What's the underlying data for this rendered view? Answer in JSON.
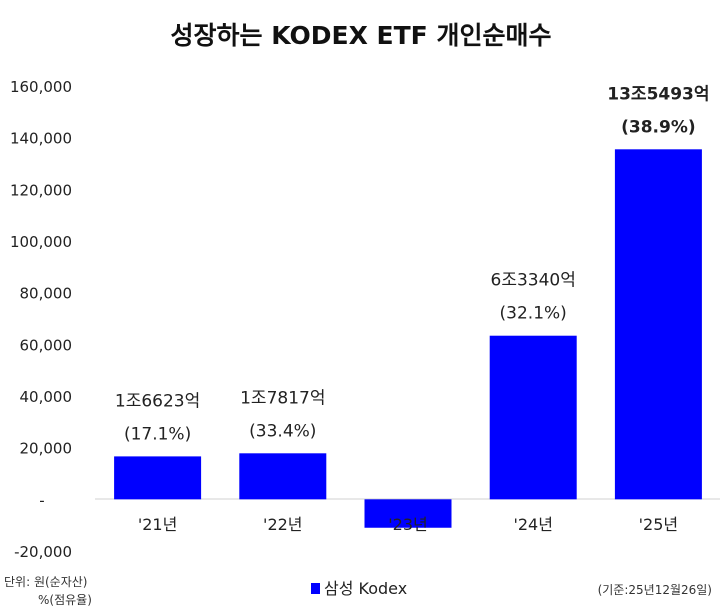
{
  "chart_data": {
    "type": "bar",
    "title": "성장하는 KODEX ETF 개인순매수",
    "categories": [
      "'21년",
      "'22년",
      "'23년",
      "'24년",
      "'25년"
    ],
    "series": [
      {
        "name": "삼성 Kodex",
        "color": "#0000ff",
        "values": [
          16623,
          17817,
          -11000,
          63340,
          135493
        ]
      }
    ],
    "data_labels": [
      {
        "amount": "1조6623억",
        "share": "(17.1%)",
        "bold": false
      },
      {
        "amount": "1조7817억",
        "share": "(33.4%)",
        "bold": false
      },
      null,
      {
        "amount": "6조3340억",
        "share": "(32.1%)",
        "bold": false
      },
      {
        "amount": "13조5493억",
        "share": "(38.9%)",
        "bold": true
      }
    ],
    "ylim": [
      -20000,
      160000
    ],
    "yticks": [
      -20000,
      0,
      20000,
      40000,
      60000,
      80000,
      100000,
      120000,
      140000,
      160000
    ],
    "ytick_labels": [
      "-20,000",
      "-",
      "20,000",
      "40,000",
      "60,000",
      "80,000",
      "100,000",
      "120,000",
      "140,000",
      "160,000"
    ],
    "legend": "bottom-center",
    "grid": false
  },
  "notes": {
    "unit_line1": "단위: 원(순자산)",
    "unit_line2": "%(점유율)",
    "basis": "(기준:25년12월26일)"
  }
}
